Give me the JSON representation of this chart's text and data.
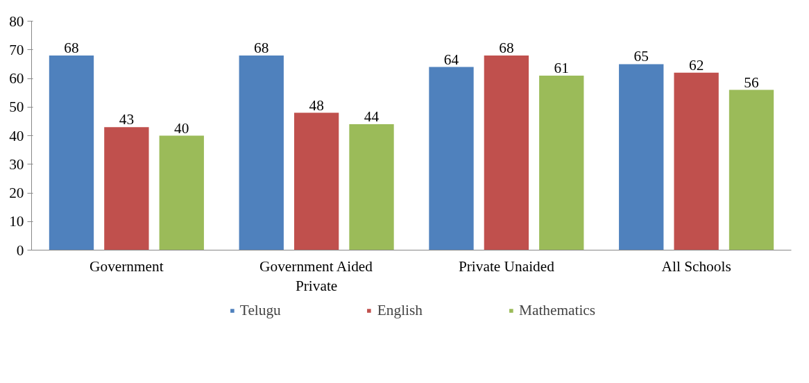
{
  "chart_data": {
    "type": "bar",
    "categories": [
      "Government",
      "Government Aided\nPrivate",
      "Private Unaided",
      "All Schools"
    ],
    "series": [
      {
        "name": "Telugu",
        "color": "#4f81bd",
        "values": [
          68,
          68,
          64,
          65
        ]
      },
      {
        "name": "English",
        "color": "#c0504d",
        "values": [
          43,
          48,
          68,
          62
        ]
      },
      {
        "name": "Mathematics",
        "color": "#9bbb59",
        "values": [
          40,
          44,
          61,
          56
        ]
      }
    ],
    "ylim": [
      0,
      80
    ],
    "yticks": [
      0,
      10,
      20,
      30,
      40,
      50,
      60,
      70,
      80
    ],
    "grid": false,
    "legend": "bottom",
    "data_labels": true
  }
}
